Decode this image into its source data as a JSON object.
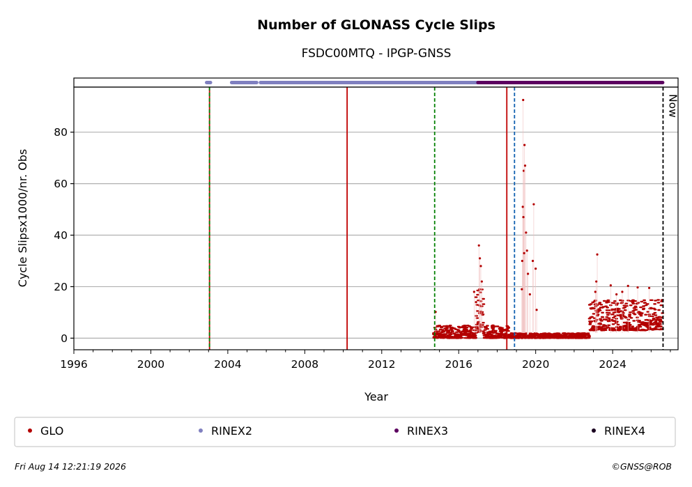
{
  "chart_data": {
    "type": "scatter",
    "title": "Number of GLONASS Cycle Slips",
    "subtitle": "FSDC00MTQ - IPGP-GNSS",
    "xlabel": "Year",
    "ylabel": "Cycle Slipsx1000/nr. Obs",
    "xlim": [
      1996,
      2027.4
    ],
    "ylim": [
      -4.5,
      97.5
    ],
    "x_ticks": [
      "1996",
      "2000",
      "2004",
      "2008",
      "2012",
      "2016",
      "2020",
      "2024"
    ],
    "y_ticks": [
      "0",
      "20",
      "40",
      "60",
      "80"
    ],
    "grid": "horizontal",
    "legend_position": "bottom",
    "series": [
      {
        "name": "GLO",
        "color": "#b30000",
        "description_points": "dense daily values 2014.7-2026.6",
        "baseline_segments": [
          {
            "from": 2014.7,
            "to": 2016.9,
            "low": 0,
            "high": 5
          },
          {
            "from": 2016.9,
            "to": 2017.3,
            "low": 2,
            "high": 20
          },
          {
            "from": 2017.3,
            "to": 2018.6,
            "low": 0,
            "high": 5
          },
          {
            "from": 2018.6,
            "to": 2022.8,
            "low": 0,
            "high": 2
          },
          {
            "from": 2022.8,
            "to": 2026.6,
            "low": 3,
            "high": 15
          }
        ],
        "spikes": [
          {
            "x": 2014.8,
            "y": 10.2
          },
          {
            "x": 2016.8,
            "y": 18
          },
          {
            "x": 2016.9,
            "y": 14
          },
          {
            "x": 2017.05,
            "y": 36
          },
          {
            "x": 2017.1,
            "y": 31
          },
          {
            "x": 2017.15,
            "y": 28
          },
          {
            "x": 2017.2,
            "y": 22
          },
          {
            "x": 2019.35,
            "y": 92.5
          },
          {
            "x": 2019.38,
            "y": 65
          },
          {
            "x": 2019.42,
            "y": 75
          },
          {
            "x": 2019.45,
            "y": 67
          },
          {
            "x": 2019.33,
            "y": 51
          },
          {
            "x": 2019.36,
            "y": 47
          },
          {
            "x": 2019.5,
            "y": 41
          },
          {
            "x": 2019.4,
            "y": 33
          },
          {
            "x": 2019.3,
            "y": 30
          },
          {
            "x": 2019.55,
            "y": 34
          },
          {
            "x": 2019.6,
            "y": 25
          },
          {
            "x": 2019.28,
            "y": 19
          },
          {
            "x": 2019.7,
            "y": 17
          },
          {
            "x": 2019.9,
            "y": 52
          },
          {
            "x": 2019.85,
            "y": 30
          },
          {
            "x": 2020.0,
            "y": 27
          },
          {
            "x": 2020.05,
            "y": 11
          },
          {
            "x": 2023.2,
            "y": 32.5
          },
          {
            "x": 2023.15,
            "y": 22
          },
          {
            "x": 2023.1,
            "y": 18
          },
          {
            "x": 2023.9,
            "y": 20.5
          },
          {
            "x": 2024.8,
            "y": 20.3
          },
          {
            "x": 2025.3,
            "y": 19.7
          },
          {
            "x": 2025.9,
            "y": 19.5
          },
          {
            "x": 2024.5,
            "y": 18
          },
          {
            "x": 2024.2,
            "y": 17
          }
        ]
      },
      {
        "name": "RINEX2",
        "color": "#8080c0",
        "coverage": [
          [
            2002.9,
            2003.1
          ],
          [
            2004.2,
            2005.5
          ],
          [
            2005.7,
            2017.0
          ]
        ]
      },
      {
        "name": "RINEX3",
        "color": "#5c0060",
        "coverage": [
          [
            2017.0,
            2026.6
          ]
        ]
      },
      {
        "name": "RINEX4",
        "color": "#1a0020",
        "coverage": []
      }
    ],
    "events": [
      {
        "x": 2003.05,
        "style": "red-solid",
        "color": "#c00000"
      },
      {
        "x": 2003.05,
        "style": "green-dashed",
        "color": "#008000"
      },
      {
        "x": 2010.2,
        "style": "red-solid",
        "color": "#c00000"
      },
      {
        "x": 2014.75,
        "style": "green-dashed",
        "color": "#008000"
      },
      {
        "x": 2018.5,
        "style": "red-solid",
        "color": "#c00000"
      },
      {
        "x": 2018.9,
        "style": "blue-dashed",
        "color": "#1060b0"
      },
      {
        "x": 2026.62,
        "style": "black-dashed",
        "color": "#000000",
        "label": "Now"
      }
    ]
  },
  "footer": {
    "timestamp": "Fri Aug 14 12:21:19 2026",
    "credit": "©GNSS@ROB"
  }
}
